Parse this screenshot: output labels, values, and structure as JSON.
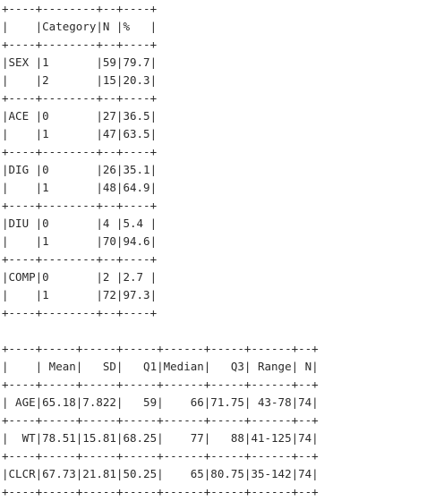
{
  "table1": {
    "lines": [
      "+----+--------+--+----+",
      "|    |Category|N |%   |",
      "+----+--------+--+----+",
      "|SEX |1       |59|79.7|",
      "|    |2       |15|20.3|",
      "+----+--------+--+----+",
      "|ACE |0       |27|36.5|",
      "|    |1       |47|63.5|",
      "+----+--------+--+----+",
      "|DIG |0       |26|35.1|",
      "|    |1       |48|64.9|",
      "+----+--------+--+----+",
      "|DIU |0       |4 |5.4 |",
      "|    |1       |70|94.6|",
      "+----+--------+--+----+",
      "|COMP|0       |2 |2.7 |",
      "|    |1       |72|97.3|",
      "+----+--------+--+----+"
    ]
  },
  "table2": {
    "lines": [
      "+----+-----+-----+-----+------+-----+------+--+",
      "|    | Mean|   SD|   Q1|Median|   Q3| Range| N|",
      "+----+-----+-----+-----+------+-----+------+--+",
      "| AGE|65.18|7.822|   59|    66|71.75| 43-78|74|",
      "+----+-----+-----+-----+------+-----+------+--+",
      "|  WT|78.51|15.81|68.25|    77|   88|41-125|74|",
      "+----+-----+-----+-----+------+-----+------+--+",
      "|CLCR|67.73|21.81|50.25|    65|80.75|35-142|74|",
      "+----+-----+-----+-----+------+-----+------+--+"
    ]
  }
}
